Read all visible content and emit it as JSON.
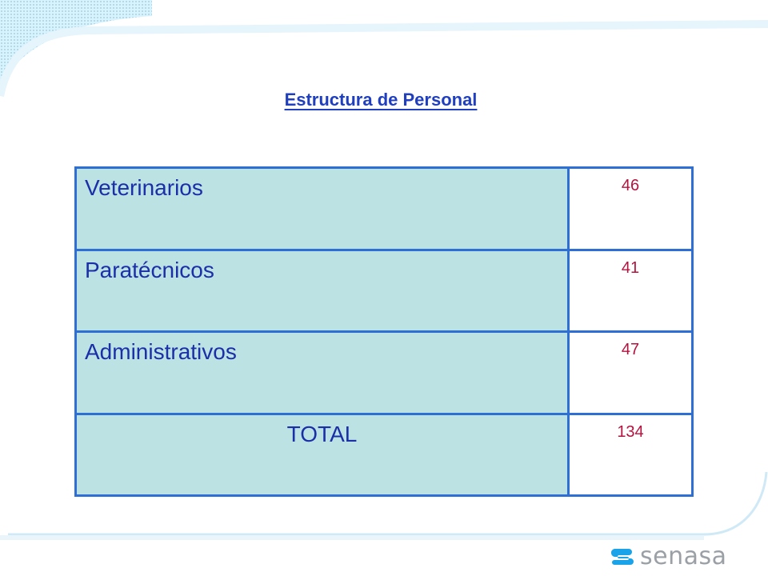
{
  "page": {
    "title": "Estructura de Personal"
  },
  "table": {
    "rows": [
      {
        "label": "Veterinarios",
        "value": "46"
      },
      {
        "label": "Paratécnicos",
        "value": "41"
      },
      {
        "label": "Administrativos",
        "value": "47"
      }
    ],
    "total": {
      "label": "TOTAL",
      "value": "134"
    }
  },
  "brand": {
    "logo_text": "senasa",
    "logo_icon": "senasa-logo-icon"
  },
  "colors": {
    "title": "#1f3fbf",
    "label_cell_bg": "#bde2e3",
    "border": "#2e6fd6",
    "value_text": "#b3143f",
    "logo_gray": "#9aa0a6",
    "logo_blue": "#1aa3e8"
  }
}
